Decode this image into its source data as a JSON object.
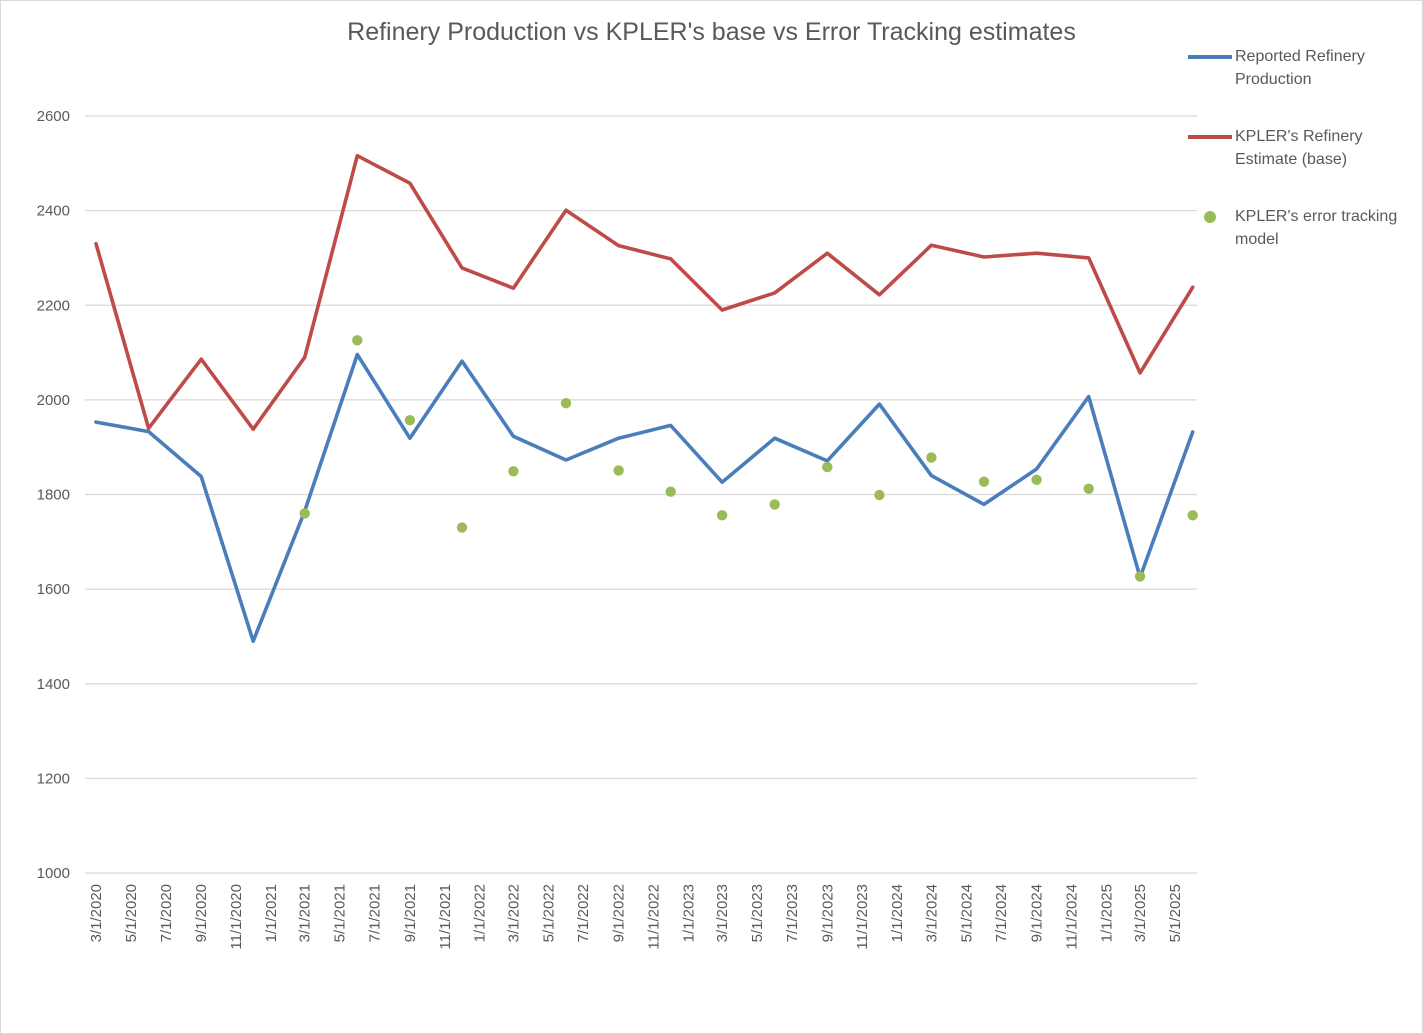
{
  "chart_data": {
    "type": "line",
    "title": "Refinery Production vs KPLER's base vs Error Tracking estimates",
    "xlabel": "",
    "ylabel": "",
    "ylim": [
      1000,
      2600
    ],
    "yticks": [
      1000,
      1200,
      1400,
      1600,
      1800,
      2000,
      2200,
      2400,
      2600
    ],
    "grid": true,
    "legend_position": "top-right",
    "x_tick_labels": [
      "3/1/2020",
      "5/1/2020",
      "7/1/2020",
      "9/1/2020",
      "11/1/2020",
      "1/1/2021",
      "3/1/2021",
      "5/1/2021",
      "7/1/2021",
      "9/1/2021",
      "11/1/2021",
      "1/1/2022",
      "3/1/2022",
      "5/1/2022",
      "7/1/2022",
      "9/1/2022",
      "11/1/2022",
      "1/1/2023",
      "3/1/2023",
      "5/1/2023",
      "7/1/2023",
      "9/1/2023",
      "11/1/2023",
      "1/1/2024",
      "3/1/2024",
      "5/1/2024",
      "7/1/2024",
      "9/1/2024",
      "11/1/2024",
      "1/1/2025",
      "3/1/2025",
      "5/1/2025"
    ],
    "categories": [
      "3/1/2020",
      "6/1/2020",
      "9/1/2020",
      "12/1/2020",
      "3/1/2021",
      "6/1/2021",
      "9/1/2021",
      "12/1/2021",
      "3/1/2022",
      "6/1/2022",
      "9/1/2022",
      "12/1/2022",
      "3/1/2023",
      "6/1/2023",
      "9/1/2023",
      "12/1/2023",
      "3/1/2024",
      "6/1/2024",
      "9/1/2024",
      "12/1/2024",
      "3/1/2025",
      "6/1/2025"
    ],
    "series": [
      {
        "name": "Reported Refinery Production",
        "type": "line",
        "color": "#4a7ebb",
        "values": [
          1953,
          1933,
          1838,
          1490,
          1765,
          2096,
          1919,
          2082,
          1923,
          1873,
          1919,
          1946,
          1826,
          1919,
          1871,
          1991,
          1840,
          1779,
          1854,
          2007,
          1625,
          1932
        ]
      },
      {
        "name": "KPLER's Refinery Estimate (base)",
        "type": "line",
        "color": "#be4b48",
        "values": [
          2330,
          1940,
          2086,
          1938,
          2090,
          2516,
          2458,
          2279,
          2236,
          2401,
          2326,
          2298,
          2190,
          2226,
          2310,
          2222,
          2327,
          2302,
          2310,
          2300,
          2057,
          2238
        ]
      },
      {
        "name": "KPLER's error tracking model",
        "type": "scatter",
        "color": "#9bbb59",
        "values": [
          null,
          null,
          null,
          null,
          1760,
          2126,
          1957,
          1730,
          1849,
          1993,
          1851,
          1806,
          1756,
          1779,
          1858,
          1799,
          1878,
          1827,
          1831,
          1812,
          1627,
          1756
        ]
      }
    ]
  },
  "legend": {
    "items": [
      {
        "line1": "Reported Refinery",
        "line2": "Production"
      },
      {
        "line1": "KPLER's Refinery",
        "line2": "Estimate (base)"
      },
      {
        "line1": "KPLER's error tracking",
        "line2": "model"
      }
    ]
  }
}
